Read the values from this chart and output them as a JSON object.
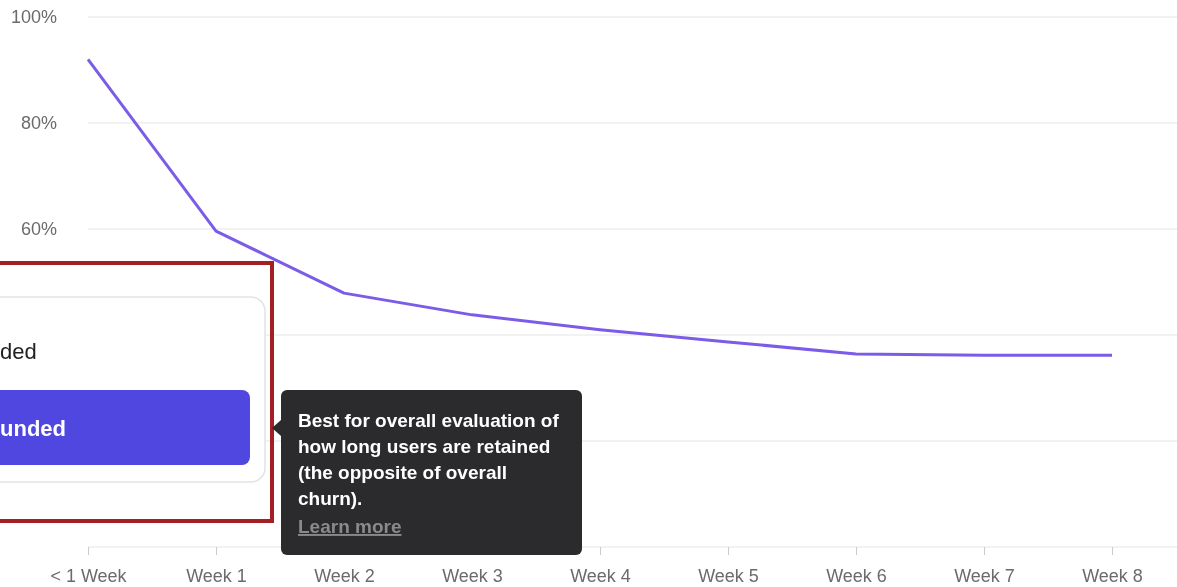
{
  "chart_data": {
    "type": "line",
    "categories": [
      "< 1 Week",
      "Week 1",
      "Week 2",
      "Week 3",
      "Week 4",
      "Week 5",
      "Week 6",
      "Week 7",
      "Week 8"
    ],
    "series": [
      {
        "color": "#7b5ce8",
        "values": [
          92,
          59.6,
          47.9,
          43.8,
          41,
          38.7,
          36.4,
          36.2,
          36.2
        ]
      }
    ],
    "ylim": [
      0,
      100
    ],
    "yticks": [
      {
        "value": 0,
        "label": null
      },
      {
        "value": 20,
        "label": null
      },
      {
        "value": 40,
        "label": null
      },
      {
        "value": 60,
        "label": "60%"
      },
      {
        "value": 80,
        "label": "80%"
      },
      {
        "value": 100,
        "label": "100%"
      }
    ],
    "grid": "y",
    "marker": "none",
    "line_style": "solid",
    "annotations": [
      "ded",
      "unded",
      "Best for overall evaluation of how long users are retained (the opposite of overall churn).",
      "Learn more"
    ]
  }
}
